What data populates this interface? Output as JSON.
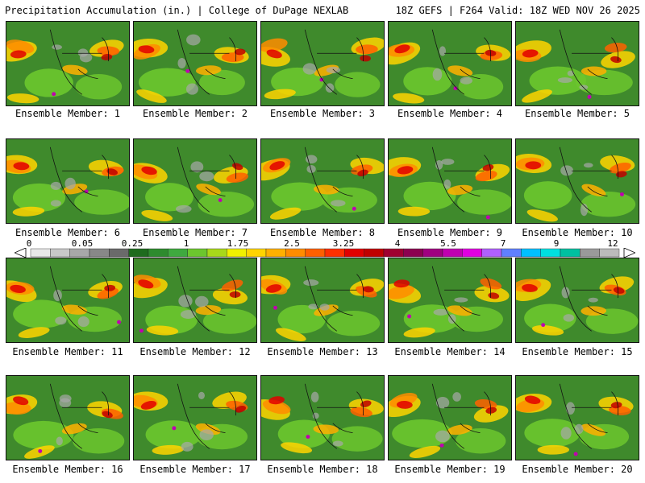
{
  "header": {
    "left_title": "Precipitation Accumulation (in.) | College of DuPage NEXLAB",
    "right_title": "18Z GEFS | F264 Valid: 18Z WED NOV 26 2025"
  },
  "panels": [
    {
      "caption": "Ensemble Member: 1"
    },
    {
      "caption": "Ensemble Member: 2"
    },
    {
      "caption": "Ensemble Member: 3"
    },
    {
      "caption": "Ensemble Member: 4"
    },
    {
      "caption": "Ensemble Member: 5"
    },
    {
      "caption": "Ensemble Member: 6"
    },
    {
      "caption": "Ensemble Member: 7"
    },
    {
      "caption": "Ensemble Member: 8"
    },
    {
      "caption": "Ensemble Member: 9"
    },
    {
      "caption": "Ensemble Member: 10"
    },
    {
      "caption": "Ensemble Member: 11"
    },
    {
      "caption": "Ensemble Member: 12"
    },
    {
      "caption": "Ensemble Member: 13"
    },
    {
      "caption": "Ensemble Member: 14"
    },
    {
      "caption": "Ensemble Member: 15"
    },
    {
      "caption": "Ensemble Member: 16"
    },
    {
      "caption": "Ensemble Member: 17"
    },
    {
      "caption": "Ensemble Member: 18"
    },
    {
      "caption": "Ensemble Member: 19"
    },
    {
      "caption": "Ensemble Member: 20"
    }
  ],
  "legend": {
    "labels": [
      "0",
      "0.05",
      "0.25",
      "1",
      "1.75",
      "2.5",
      "3.25",
      "4",
      "5.5",
      "7",
      "9",
      "12"
    ],
    "colors": [
      "#e8e8e8",
      "#c8c8c8",
      "#a8a8a8",
      "#888888",
      "#6a6a6a",
      "#1e6b1e",
      "#2e8b2e",
      "#3fa93f",
      "#6cc62e",
      "#a8d81a",
      "#f0f000",
      "#ffd400",
      "#ffb000",
      "#ff8c00",
      "#ff6000",
      "#ff3000",
      "#e00000",
      "#c00000",
      "#a00030",
      "#8c0050",
      "#a00080",
      "#c000b0",
      "#e000e0",
      "#b060ff",
      "#6080ff",
      "#00c0ff",
      "#00e0e0",
      "#00c0a0",
      "#9a9a9a",
      "#bbbbbb"
    ]
  }
}
